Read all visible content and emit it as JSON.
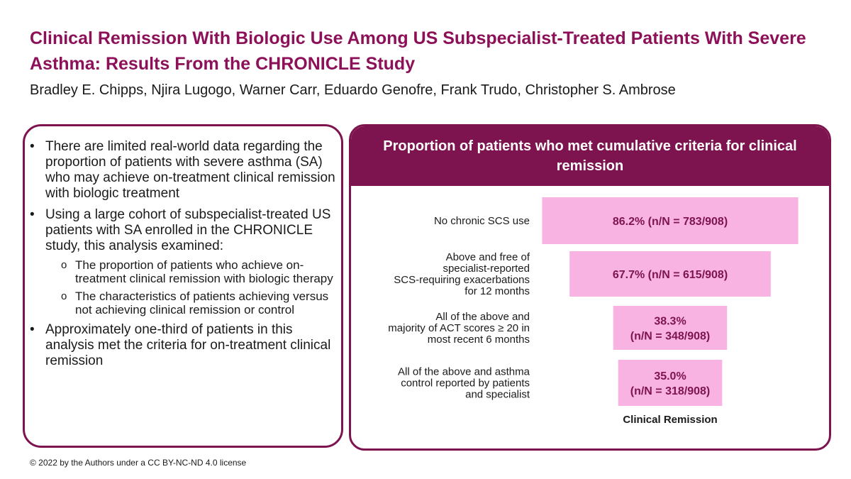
{
  "title": "Clinical Remission With Biologic Use Among US Subspecialist-Treated Patients With Severe Asthma: Results From the CHRONICLE Study",
  "authors": "Bradley E. Chipps, Njira Lugogo, Warner Carr, Eduardo Genofre, Frank Trudo, Christopher S. Ambrose",
  "bullets": [
    "There are limited real-world data regarding the proportion of patients with severe asthma (SA) who may achieve on-treatment clinical remission with biologic treatment",
    "Using a large cohort of subspecialist-treated US patients with SA enrolled in the CHRONICLE study, this analysis examined:",
    "Approximately one-third of patients in this analysis met the criteria for on-treatment clinical remission"
  ],
  "sub_bullets": [
    "The proportion of patients who achieve on-treatment clinical remission with biologic therapy",
    "The characteristics of patients achieving versus not achieving clinical remission or control"
  ],
  "bullet_symbol": "•",
  "sub_bullet_symbol": "o",
  "chart_title": "Proportion of patients who met cumulative criteria for clinical remission",
  "copyright": "© 2022 by the Authors under a CC BY-NC-ND 4.0 license",
  "colors": {
    "accent": "#7d1450",
    "title": "#8c1158",
    "bar": "#f9b3e2"
  },
  "chart_data": {
    "type": "bar",
    "orientation": "horizontal-funnel",
    "title": "Proportion of patients who met cumulative criteria for clinical remission",
    "categories": [
      "No chronic SCS use",
      "Above and free of specialist-reported SCS-requiring exacerbations for 12 months",
      "All of the above and majority of ACT scores ≥ 20 in most recent 6 months",
      "All of the above and asthma control reported by patients and specialist"
    ],
    "category_lines": [
      [
        "No chronic SCS use"
      ],
      [
        "Above and free of",
        "specialist-reported",
        "SCS-requiring exacerbations",
        "for 12 months"
      ],
      [
        "All of the above and",
        "majority of ACT scores ≥ 20 in",
        "most recent 6 months"
      ],
      [
        "All of the above and asthma",
        "control reported by patients",
        "and specialist"
      ]
    ],
    "values": [
      86.2,
      67.7,
      38.3,
      35.0
    ],
    "n": [
      783,
      615,
      348,
      318
    ],
    "N": 908,
    "data_labels": [
      [
        "86.2% (n/N = 783/908)"
      ],
      [
        "67.7% (n/N = 615/908)"
      ],
      [
        "38.3%",
        "(n/N = 348/908)"
      ],
      [
        "35.0%",
        "(n/N = 318/908)"
      ]
    ],
    "annotation": "Clinical Remission",
    "xlim": [
      0,
      100
    ]
  }
}
